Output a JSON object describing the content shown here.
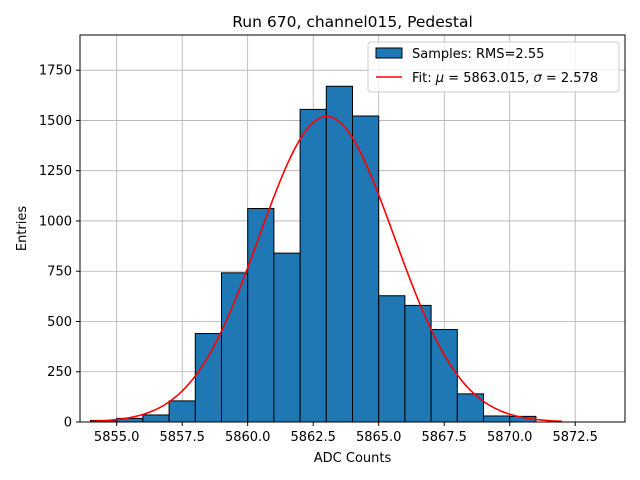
{
  "chart_data": {
    "type": "bar",
    "title": "Run 670, channel015, Pedestal",
    "xlabel": "ADC Counts",
    "ylabel": "Entries",
    "xlim": [
      5853.6,
      5874.4
    ],
    "ylim": [
      0,
      1925
    ],
    "grid": true,
    "legend_position": "top-right",
    "x_ticks": [
      5855.0,
      5857.5,
      5860.0,
      5862.5,
      5865.0,
      5867.5,
      5870.0,
      5872.5
    ],
    "x_tick_labels": [
      "5855.0",
      "5857.5",
      "5860.0",
      "5862.5",
      "5865.0",
      "5867.5",
      "5870.0",
      "5872.5"
    ],
    "y_ticks": [
      0,
      250,
      500,
      750,
      1000,
      1250,
      1500,
      1750
    ],
    "y_tick_labels": [
      "0",
      "250",
      "500",
      "750",
      "1000",
      "1250",
      "1500",
      "1750"
    ],
    "histogram": {
      "name": "Samples: RMS=2.55",
      "color": "#1f77b4",
      "edge_color": "#000000",
      "bin_edges": [
        5854,
        5855,
        5856,
        5857,
        5858,
        5859,
        5860,
        5861,
        5862,
        5863,
        5864,
        5865,
        5866,
        5867,
        5868,
        5869,
        5870,
        5871
      ],
      "values": [
        8,
        18,
        35,
        105,
        440,
        742,
        1062,
        840,
        1555,
        1670,
        1522,
        628,
        580,
        460,
        140,
        30,
        28
      ]
    },
    "fit": {
      "name": "Fit: μ = 5863.015, σ = 2.578",
      "name_prefix": "Fit: ",
      "mu_symbol": "μ",
      "mu_value": " = 5863.015, ",
      "sigma_symbol": "σ",
      "sigma_value": " = 2.578",
      "color": "#ff0000",
      "mu": 5863.015,
      "sigma": 2.578,
      "amplitude": 1520,
      "x_range": [
        5854,
        5872
      ]
    }
  }
}
